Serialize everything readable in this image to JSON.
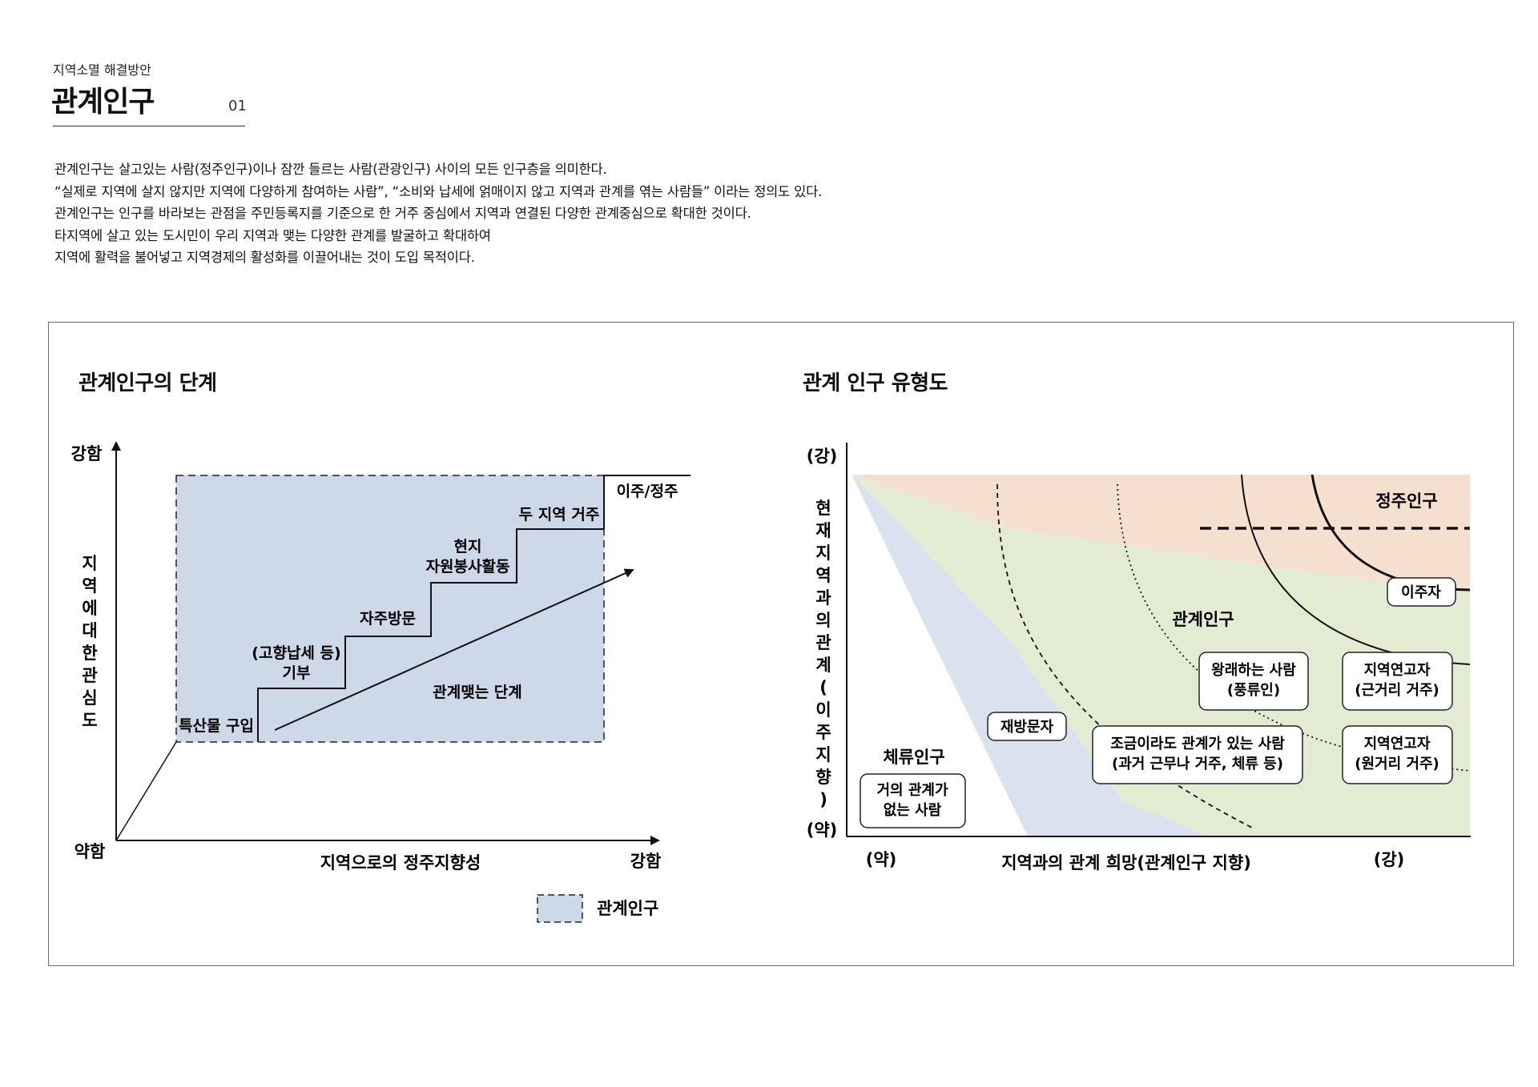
{
  "header": {
    "eyebrow": "지역소멸 해결방안",
    "title": "관계인구",
    "page_number": "01"
  },
  "intro_lines": [
    "관계인구는 살고있는 사람(정주인구)이나 잠깐 들르는 사람(관광인구) 사이의 모든 인구층을 의미한다.",
    "“실제로 지역에 살지 않지만 지역에 다양하게 참여하는 사람”, “소비와 납세에 얽매이지 않고 지역과 관계를 엮는 사람들” 이라는 정의도 있다.",
    "관계인구는 인구를 바라보는 관점을 주민등록지를 기준으로 한 거주 중심에서 지역과 연결된 다양한 관계중심으로 확대한 것이다.",
    "타지역에 살고 있는 도시민이 우리 지역과 맺는 다양한 관계를 발굴하고 확대하여",
    "지역에 활력을 불어넣고 지역경제의 활성화를 이끌어내는 것이 도입 목적이다."
  ],
  "left_diagram": {
    "title": "관계인구의 단계",
    "y_axis": {
      "top": "강함",
      "bottom": "약함",
      "label": "지역에대한관심도"
    },
    "x_axis": {
      "label": "지역으로의 정주지향성",
      "right": "강함"
    },
    "steps": {
      "s1": "특산물 구입",
      "s2a": "(고향납세 등)",
      "s2b": "기부",
      "s3": "자주방문",
      "s4a": "현지",
      "s4b": "자원봉사활동",
      "s5": "두 지역 거주",
      "s6": "이주/정주"
    },
    "arrow_label": "관계맺는 단계",
    "legend": "관계인구",
    "colors": {
      "fill": "#cdd8e8",
      "line": "#111111"
    }
  },
  "right_diagram": {
    "title": "관계 인구 유형도",
    "y_axis": {
      "top": "(강)",
      "bottom": "(약)",
      "label": "현재지역과의관계(이주지향)"
    },
    "x_axis": {
      "left": "(약)",
      "label": "지역과의 관계 희망(관계인구 지향)",
      "right": "(강)"
    },
    "regions": {
      "settled": "정주인구",
      "relation": "관계인구",
      "stay": "체류인구"
    },
    "boxes": {
      "migrant": "이주자",
      "wanderer_a": "왕래하는 사람",
      "wanderer_b": "(풍류인)",
      "near_a": "지역연고자",
      "near_b": "(근거리 거주)",
      "revisit": "재방문자",
      "some_a": "조금이라도 관계가 있는 사람",
      "some_b": "(과거 근무나 거주, 체류 등)",
      "far_a": "지역연고자",
      "far_b": "(원거리 거주)",
      "none_a": "거의 관계가",
      "none_b": "없는 사람"
    },
    "colors": {
      "settled": "#f5dfcf",
      "relation": "#e3ebd2",
      "stay": "#dbe2ef"
    }
  }
}
